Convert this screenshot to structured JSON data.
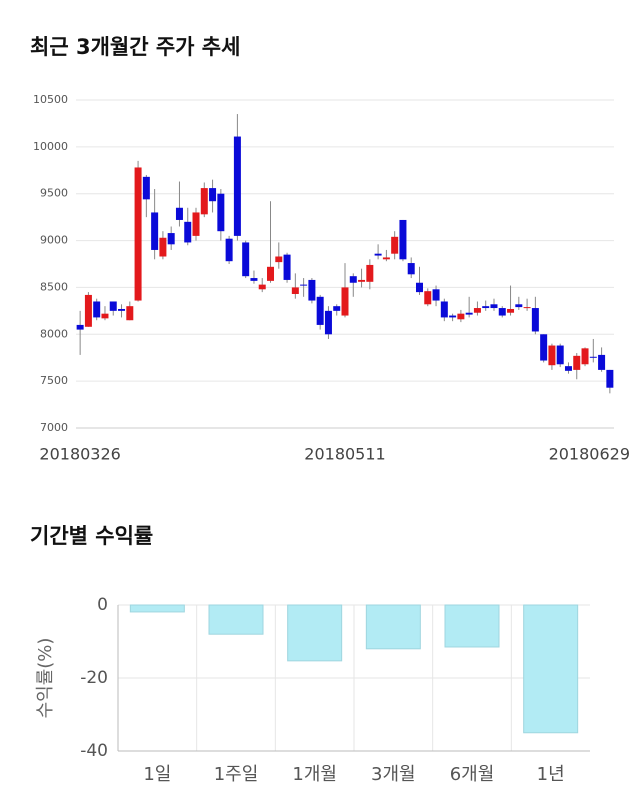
{
  "chart_data": [
    {
      "type": "candlestick",
      "title": "최근 3개월간 주가 추세",
      "categories": [
        "20180326",
        null,
        null,
        null,
        null,
        null,
        null,
        null,
        null,
        null,
        null,
        null,
        null,
        null,
        null,
        null,
        null,
        null,
        null,
        null,
        null,
        null,
        null,
        null,
        null,
        null,
        null,
        null,
        null,
        null,
        null,
        null,
        "20180511",
        null,
        null,
        null,
        null,
        null,
        null,
        null,
        null,
        null,
        null,
        null,
        null,
        null,
        null,
        null,
        null,
        null,
        null,
        null,
        null,
        null,
        null,
        null,
        null,
        null,
        null,
        null,
        null,
        null,
        null,
        null,
        "20180629"
      ],
      "open": [
        8100,
        8080,
        8350,
        8170,
        8350,
        8270,
        8150,
        8360,
        9680,
        9300,
        8830,
        9080,
        9350,
        9200,
        9050,
        9280,
        9560,
        9500,
        9020,
        10110,
        8980,
        8600,
        8480,
        8570,
        8770,
        8850,
        8430,
        8530,
        8580,
        8400,
        8250,
        8300,
        8200,
        8620,
        8560,
        8560,
        8860,
        8800,
        8860,
        9220,
        8760,
        8550,
        8320,
        8480,
        8350,
        8200,
        8160,
        8230,
        8230,
        8300,
        8320,
        8280,
        8230,
        8320,
        8280,
        8280,
        8000,
        7670,
        7880,
        7660,
        7620,
        7680,
        7760,
        7780,
        7620
      ],
      "high": [
        8250,
        8450,
        8380,
        8300,
        8350,
        8320,
        8350,
        9850,
        9700,
        9550,
        9100,
        9150,
        9630,
        9350,
        9350,
        9620,
        9650,
        9550,
        9050,
        10350,
        9000,
        8680,
        8600,
        9420,
        8980,
        8870,
        8650,
        8600,
        8600,
        8420,
        8300,
        8320,
        8760,
        8650,
        8700,
        8800,
        8960,
        8900,
        9100,
        9220,
        8820,
        8720,
        8490,
        8520,
        8380,
        8220,
        8260,
        8400,
        8350,
        8360,
        8380,
        8300,
        8520,
        8400,
        8380,
        8400,
        8000,
        7900,
        7900,
        7700,
        7800,
        7860,
        7950,
        7860,
        7620
      ],
      "low": [
        7780,
        8080,
        8150,
        8150,
        8200,
        8180,
        8150,
        8350,
        9250,
        8800,
        8800,
        8900,
        9150,
        8950,
        9000,
        9250,
        9300,
        9000,
        8750,
        9000,
        8600,
        8540,
        8450,
        8550,
        8700,
        8550,
        8380,
        8400,
        8330,
        8050,
        7950,
        8200,
        8180,
        8400,
        8500,
        8480,
        8800,
        8780,
        8800,
        8780,
        8600,
        8420,
        8300,
        8300,
        8140,
        8140,
        8130,
        8180,
        8200,
        8250,
        8250,
        8180,
        8200,
        8260,
        8250,
        8000,
        7700,
        7620,
        7650,
        7580,
        7520,
        7660,
        7700,
        7600,
        7370
      ],
      "close": [
        8050,
        8420,
        8180,
        8220,
        8250,
        8250,
        8300,
        9780,
        9440,
        8900,
        9030,
        8960,
        9220,
        8980,
        9300,
        9560,
        9420,
        9100,
        8780,
        9050,
        8620,
        8570,
        8530,
        8720,
        8830,
        8580,
        8500,
        8520,
        8360,
        8100,
        8000,
        8250,
        8500,
        8550,
        8580,
        8740,
        8840,
        8820,
        9040,
        8800,
        8640,
        8450,
        8460,
        8360,
        8180,
        8180,
        8220,
        8210,
        8280,
        8280,
        8280,
        8200,
        8270,
        8290,
        8290,
        8030,
        7720,
        7880,
        7680,
        7610,
        7770,
        7850,
        7750,
        7620,
        7430
      ],
      "up_color": "#e3191c",
      "down_color": "#0a0ad8",
      "ylim": [
        7000,
        10500
      ],
      "yticks": [
        7000,
        7500,
        8000,
        8500,
        9000,
        9500,
        10000,
        10500
      ],
      "grid": true
    },
    {
      "type": "bar",
      "title": "기간별 수익률",
      "ylabel": "수익률(%)",
      "categories": [
        "1일",
        "1주일",
        "1개월",
        "3개월",
        "6개월",
        "1년"
      ],
      "values": [
        -1.9,
        -8,
        -15.3,
        -12,
        -11.5,
        -35
      ],
      "color": "#b2ebf4",
      "ylim": [
        -40,
        0
      ],
      "yticks": [
        0,
        -20,
        -40
      ],
      "grid": true
    }
  ]
}
